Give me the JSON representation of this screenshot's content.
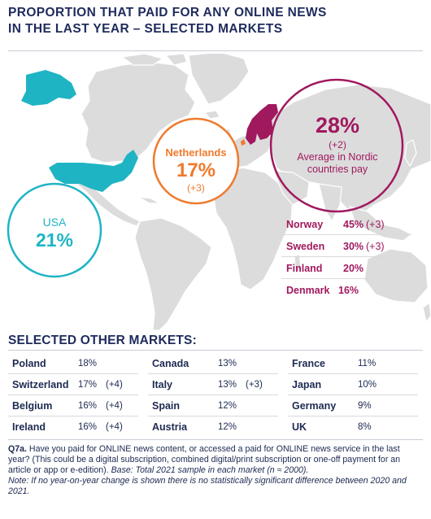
{
  "header": {
    "title_line1": "PROPORTION THAT PAID FOR ANY ONLINE NEWS",
    "title_line2": "IN THE LAST YEAR – SELECTED MARKETS"
  },
  "callouts": {
    "usa": {
      "name": "USA",
      "value": "21%"
    },
    "netherlands": {
      "name": "Netherlands",
      "value": "17%",
      "change": "(+3)"
    },
    "nordic": {
      "value": "28%",
      "change": "(+2)",
      "label_line1": "Average in Nordic",
      "label_line2": "countries pay"
    }
  },
  "nordic_table": [
    {
      "country": "Norway",
      "value": "45%",
      "change": "(+3)"
    },
    {
      "country": "Sweden",
      "value": "30%",
      "change": "(+3)"
    },
    {
      "country": "Finland",
      "value": "20%",
      "change": ""
    },
    {
      "country": "Denmark",
      "value": "16%",
      "change": ""
    }
  ],
  "other_markets": {
    "heading": "SELECTED OTHER MARKETS:",
    "columns": [
      [
        {
          "country": "Poland",
          "value": "18%",
          "change": ""
        },
        {
          "country": "Switzerland",
          "value": "17%",
          "change": "(+4)"
        },
        {
          "country": "Belgium",
          "value": "16%",
          "change": "(+4)"
        },
        {
          "country": "Ireland",
          "value": "16%",
          "change": "(+4)"
        }
      ],
      [
        {
          "country": "Canada",
          "value": "13%",
          "change": ""
        },
        {
          "country": "Italy",
          "value": "13%",
          "change": "(+3)"
        },
        {
          "country": "Spain",
          "value": "12%",
          "change": ""
        },
        {
          "country": "Austria",
          "value": "12%",
          "change": ""
        }
      ],
      [
        {
          "country": "France",
          "value": "11%",
          "change": ""
        },
        {
          "country": "Japan",
          "value": "10%",
          "change": ""
        },
        {
          "country": "Germany",
          "value": "9%",
          "change": ""
        },
        {
          "country": "UK",
          "value": "8%",
          "change": ""
        }
      ]
    ]
  },
  "footnote": {
    "q_label": "Q7a.",
    "question": " Have you paid for ONLINE news content, or accessed a paid for ONLINE news service in the last year? (This could be a digital subscription, combined digital/print subscription or one-off payment for an article or app or e-edition). ",
    "base": "Base: Total 2021 sample in each market (n ≈ 2000).",
    "note": "Note: If no year-on-year change is shown there is no statistically significant difference between 2020 and 2021."
  },
  "colors": {
    "navy": "#1e2b5c",
    "teal": "#1fb4c4",
    "orange": "#ef7a2d",
    "magenta": "#a0195e",
    "land": "#dcdcdc"
  },
  "chart_data": {
    "type": "table",
    "measure": "Proportion that paid for any online news in the last year",
    "highlighted": [
      {
        "market": "USA",
        "value": 21,
        "change": null
      },
      {
        "market": "Netherlands",
        "value": 17,
        "change": 3
      },
      {
        "market": "Average in Nordic countries",
        "value": 28,
        "change": 2
      }
    ],
    "nordic": [
      {
        "market": "Norway",
        "value": 45,
        "change": 3
      },
      {
        "market": "Sweden",
        "value": 30,
        "change": 3
      },
      {
        "market": "Finland",
        "value": 20,
        "change": null
      },
      {
        "market": "Denmark",
        "value": 16,
        "change": null
      }
    ],
    "other": [
      {
        "market": "Poland",
        "value": 18,
        "change": null
      },
      {
        "market": "Switzerland",
        "value": 17,
        "change": 4
      },
      {
        "market": "Belgium",
        "value": 16,
        "change": 4
      },
      {
        "market": "Ireland",
        "value": 16,
        "change": 4
      },
      {
        "market": "Canada",
        "value": 13,
        "change": null
      },
      {
        "market": "Italy",
        "value": 13,
        "change": 3
      },
      {
        "market": "Spain",
        "value": 12,
        "change": null
      },
      {
        "market": "Austria",
        "value": 12,
        "change": null
      },
      {
        "market": "France",
        "value": 11,
        "change": null
      },
      {
        "market": "Japan",
        "value": 10,
        "change": null
      },
      {
        "market": "Germany",
        "value": 9,
        "change": null
      },
      {
        "market": "UK",
        "value": 8,
        "change": null
      }
    ]
  }
}
